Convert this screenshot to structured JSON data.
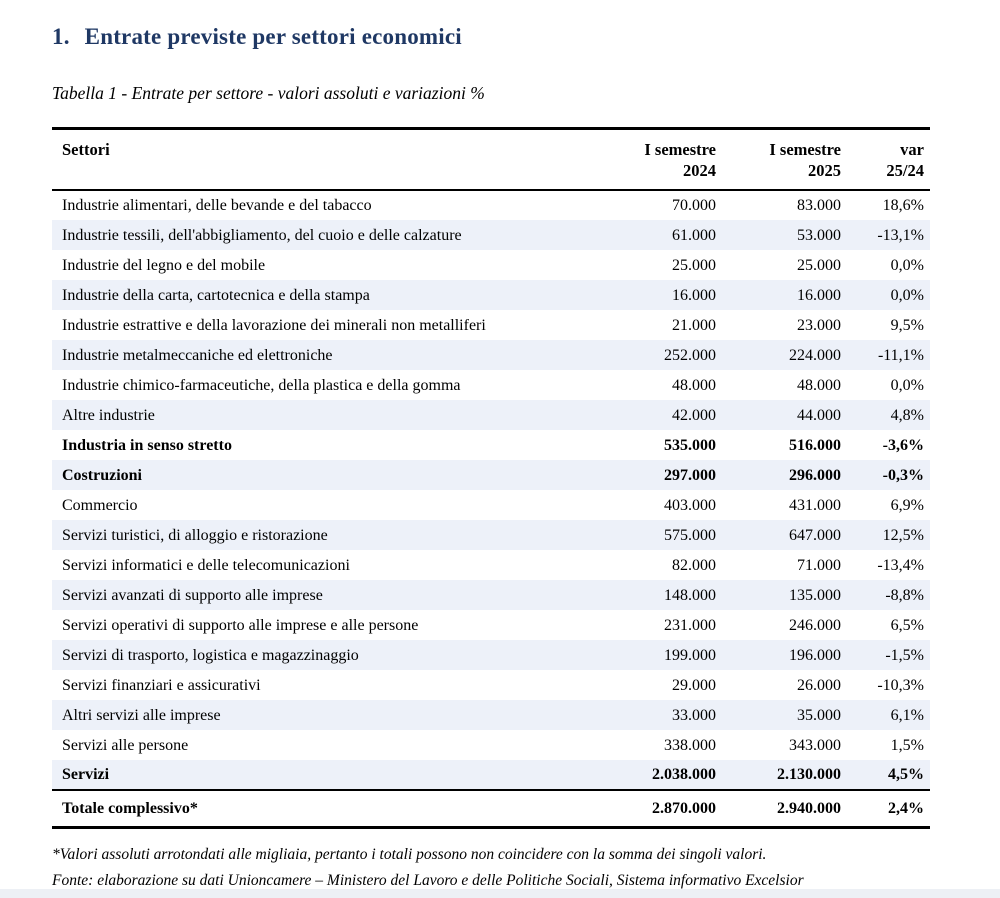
{
  "header": {
    "section_number": "1.",
    "title": "Entrate previste per settori economici",
    "caption": "Tabella 1 - Entrate per settore - valori assoluti e variazioni %"
  },
  "table": {
    "header": {
      "sector": "Settori",
      "sem1_line1": "I semestre",
      "sem1_line2": "2024",
      "sem2_line1": "I semestre",
      "sem2_line2": "2025",
      "var_line1": "var",
      "var_line2": "25/24"
    },
    "rows": [
      {
        "sector": "Industrie alimentari, delle bevande e del tabacco",
        "sem2024": "70.000",
        "sem2025": "83.000",
        "var": "18,6%",
        "subtotal": false
      },
      {
        "sector": "Industrie tessili, dell'abbigliamento, del cuoio e delle calzature",
        "sem2024": "61.000",
        "sem2025": "53.000",
        "var": "-13,1%",
        "subtotal": false
      },
      {
        "sector": "Industrie del legno e del mobile",
        "sem2024": "25.000",
        "sem2025": "25.000",
        "var": "0,0%",
        "subtotal": false
      },
      {
        "sector": "Industrie della carta, cartotecnica e della stampa",
        "sem2024": "16.000",
        "sem2025": "16.000",
        "var": "0,0%",
        "subtotal": false
      },
      {
        "sector": "Industrie estrattive e della lavorazione dei minerali non metalliferi",
        "sem2024": "21.000",
        "sem2025": "23.000",
        "var": "9,5%",
        "subtotal": false
      },
      {
        "sector": "Industrie metalmeccaniche ed elettroniche",
        "sem2024": "252.000",
        "sem2025": "224.000",
        "var": "-11,1%",
        "subtotal": false
      },
      {
        "sector": "Industrie chimico-farmaceutiche, della plastica e della gomma",
        "sem2024": "48.000",
        "sem2025": "48.000",
        "var": "0,0%",
        "subtotal": false
      },
      {
        "sector": "Altre industrie",
        "sem2024": "42.000",
        "sem2025": "44.000",
        "var": "4,8%",
        "subtotal": false
      },
      {
        "sector": "Industria in senso stretto",
        "sem2024": "535.000",
        "sem2025": "516.000",
        "var": "-3,6%",
        "subtotal": true
      },
      {
        "sector": "Costruzioni",
        "sem2024": "297.000",
        "sem2025": "296.000",
        "var": "-0,3%",
        "subtotal": true
      },
      {
        "sector": "Commercio",
        "sem2024": "403.000",
        "sem2025": "431.000",
        "var": "6,9%",
        "subtotal": false
      },
      {
        "sector": "Servizi turistici, di alloggio e ristorazione",
        "sem2024": "575.000",
        "sem2025": "647.000",
        "var": "12,5%",
        "subtotal": false
      },
      {
        "sector": "Servizi informatici e delle telecomunicazioni",
        "sem2024": "82.000",
        "sem2025": "71.000",
        "var": "-13,4%",
        "subtotal": false
      },
      {
        "sector": "Servizi avanzati di supporto alle imprese",
        "sem2024": "148.000",
        "sem2025": "135.000",
        "var": "-8,8%",
        "subtotal": false
      },
      {
        "sector": "Servizi operativi di supporto alle imprese e alle persone",
        "sem2024": "231.000",
        "sem2025": "246.000",
        "var": "6,5%",
        "subtotal": false
      },
      {
        "sector": "Servizi di trasporto, logistica e magazzinaggio",
        "sem2024": "199.000",
        "sem2025": "196.000",
        "var": "-1,5%",
        "subtotal": false
      },
      {
        "sector": "Servizi finanziari e assicurativi",
        "sem2024": "29.000",
        "sem2025": "26.000",
        "var": "-10,3%",
        "subtotal": false
      },
      {
        "sector": "Altri servizi alle imprese",
        "sem2024": "33.000",
        "sem2025": "35.000",
        "var": "6,1%",
        "subtotal": false
      },
      {
        "sector": "Servizi alle persone",
        "sem2024": "338.000",
        "sem2025": "343.000",
        "var": "1,5%",
        "subtotal": false
      },
      {
        "sector": "Servizi",
        "sem2024": "2.038.000",
        "sem2025": "2.130.000",
        "var": "4,5%",
        "subtotal": true
      }
    ],
    "total": {
      "sector": "Totale complessivo*",
      "sem2024": "2.870.000",
      "sem2025": "2.940.000",
      "var": "2,4%"
    }
  },
  "footnotes": [
    "*Valori assoluti arrotondati alle migliaia, pertanto i totali possono non coincidere con la somma dei singoli valori.",
    "Fonte: elaborazione su dati Unioncamere – Ministero del Lavoro e delle Politiche Sociali, Sistema informativo Excelsior"
  ],
  "colors": {
    "title": "#1f3864",
    "row_stripe": "#edf1f9",
    "rule": "#000000",
    "bottom_strip": "#edf0f5"
  }
}
